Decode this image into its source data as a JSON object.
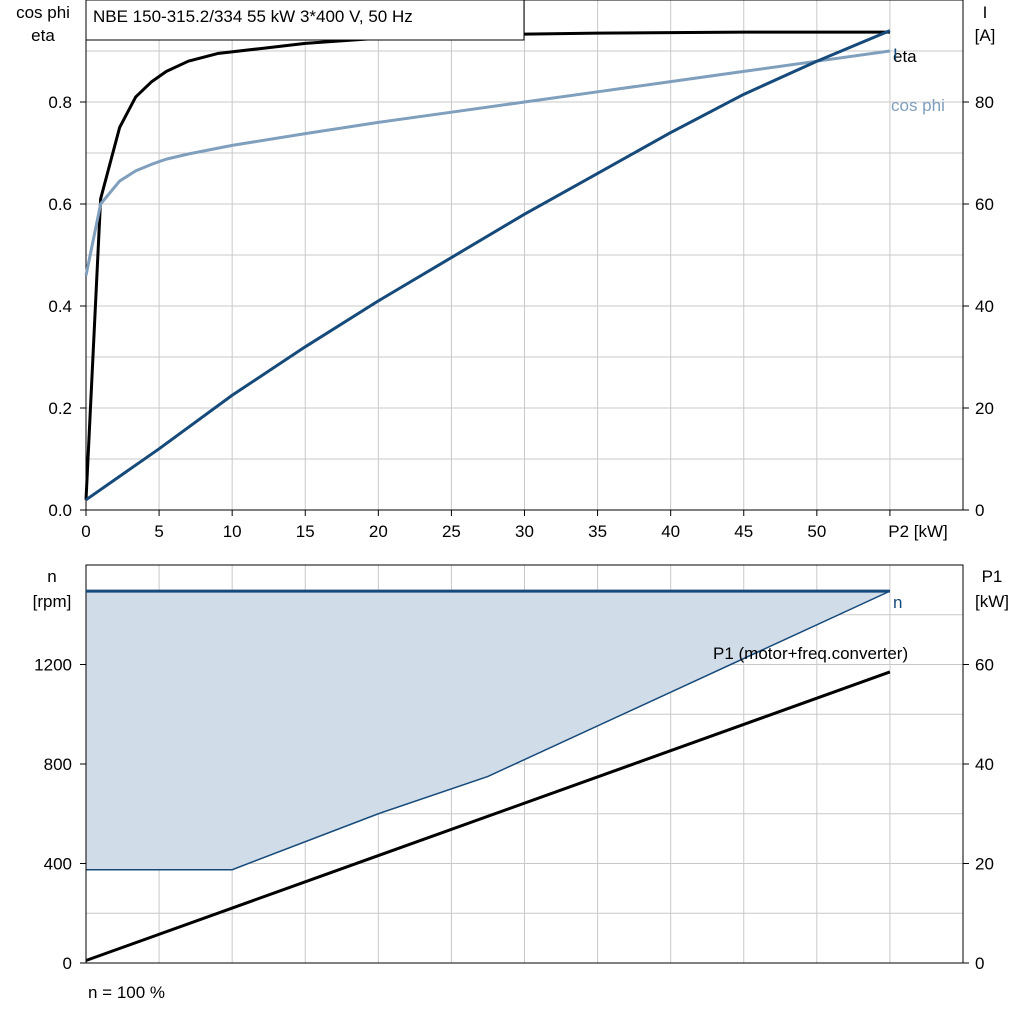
{
  "chart_data": [
    {
      "type": "line",
      "title": "NBE 150-315.2/334   55 kW   3*400 V, 50 Hz",
      "xlabel": "P2 [kW]",
      "ylabel_left": [
        "cos phi",
        "eta"
      ],
      "ylabel_right": [
        "I",
        "[A]"
      ],
      "xlim": [
        0,
        60
      ],
      "ylim_left": [
        0,
        1
      ],
      "ylim_right": [
        0,
        100
      ],
      "x_ticks": [
        "0",
        "5",
        "10",
        "15",
        "20",
        "25",
        "30",
        "35",
        "40",
        "45",
        "50"
      ],
      "y_ticks_left": [
        "0.0",
        "0.2",
        "0.4",
        "0.6",
        "0.8"
      ],
      "y_ticks_right": [
        "0",
        "20",
        "40",
        "60",
        "80"
      ],
      "grid": true,
      "series": [
        {
          "name": "eta",
          "axis": "left",
          "color": "#000000",
          "x": [
            0,
            1,
            2.3,
            3.4,
            4.5,
            5.5,
            7,
            9,
            12,
            15,
            20,
            25,
            30,
            35,
            40,
            45,
            50,
            55
          ],
          "y": [
            0.02,
            0.61,
            0.75,
            0.81,
            0.84,
            0.86,
            0.88,
            0.895,
            0.905,
            0.915,
            0.925,
            0.93,
            0.933,
            0.935,
            0.936,
            0.937,
            0.937,
            0.937
          ]
        },
        {
          "name": "cos phi",
          "axis": "left",
          "color": "#7f9fbd",
          "x": [
            0,
            1,
            2.3,
            3.4,
            4.5,
            5.5,
            7,
            10,
            15,
            20,
            25,
            30,
            35,
            40,
            45,
            50,
            55
          ],
          "y": [
            0.46,
            0.6,
            0.645,
            0.665,
            0.678,
            0.688,
            0.698,
            0.715,
            0.738,
            0.76,
            0.78,
            0.8,
            0.82,
            0.84,
            0.86,
            0.88,
            0.9
          ]
        },
        {
          "name": "I",
          "axis": "right",
          "color": "#164a7a",
          "x": [
            0,
            5,
            10,
            15,
            20,
            25,
            30,
            35,
            40,
            45,
            50,
            55
          ],
          "y": [
            2,
            12,
            22.5,
            32,
            41,
            49.5,
            58,
            66,
            74,
            81.5,
            88,
            94
          ]
        }
      ]
    },
    {
      "type": "line",
      "xlabel": "",
      "ylabel_left": [
        "n",
        "[rpm]"
      ],
      "ylabel_right": [
        "P1",
        "[kW]"
      ],
      "xlim": [
        0,
        60
      ],
      "ylim_left": [
        0,
        1600
      ],
      "ylim_right": [
        0,
        80
      ],
      "y_ticks_left": [
        "0",
        "400",
        "800",
        "1200"
      ],
      "y_ticks_right": [
        "0",
        "20",
        "40",
        "60"
      ],
      "grid": true,
      "annotation": "n = 100 %",
      "speed_range": {
        "color": "#d0dce8",
        "upper": {
          "x": [
            0,
            55
          ],
          "y": [
            1495,
            1495
          ]
        },
        "lower": {
          "x": [
            0,
            10,
            20,
            27.5,
            55
          ],
          "y": [
            375,
            375,
            600,
            750,
            1495
          ]
        }
      },
      "series": [
        {
          "name": "n",
          "axis": "left",
          "color": "#164a7a",
          "x": [
            0,
            55
          ],
          "y": [
            1495,
            1495
          ]
        },
        {
          "name": "P1 (motor+freq.converter)",
          "axis": "right",
          "color": "#000000",
          "x": [
            0,
            55
          ],
          "y": [
            0.5,
            58.5
          ]
        }
      ]
    }
  ]
}
